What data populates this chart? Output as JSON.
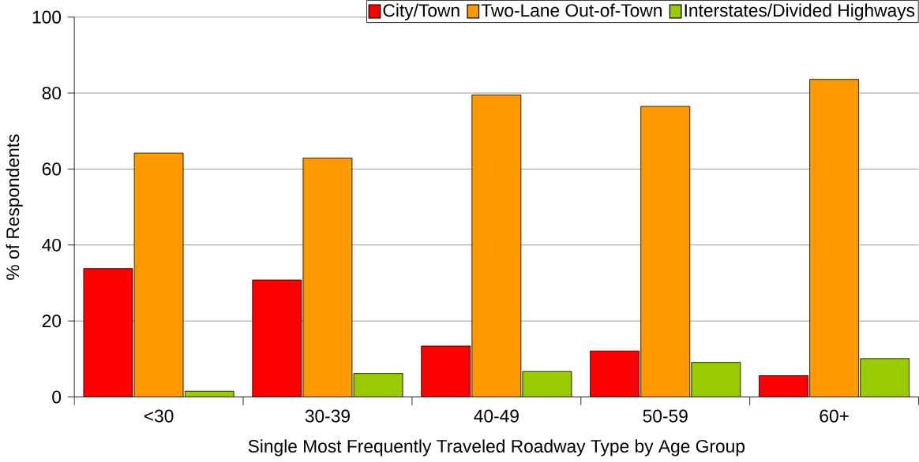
{
  "chart_data": {
    "type": "bar",
    "xlabel": "Single Most Frequently Traveled Roadway Type by Age Group",
    "ylabel": "% of Respondents",
    "categories": [
      "<30",
      "30-39",
      "40-49",
      "50-59",
      "60+"
    ],
    "series": [
      {
        "name": "City/Town",
        "color": "#ff0000",
        "values": [
          33.8,
          30.8,
          13.4,
          12.1,
          5.6
        ]
      },
      {
        "name": "Two-Lane Out-of-Town",
        "color": "#ff9900",
        "values": [
          64.2,
          62.9,
          79.5,
          76.5,
          83.6
        ]
      },
      {
        "name": "Interstates/Divided Highways",
        "color": "#99cc00",
        "values": [
          1.5,
          6.2,
          6.7,
          9.1,
          10.1
        ]
      }
    ],
    "ylim": [
      0,
      100
    ],
    "yticks": [
      0,
      20,
      40,
      60,
      80,
      100
    ],
    "grid": "y",
    "legend": "top right"
  }
}
